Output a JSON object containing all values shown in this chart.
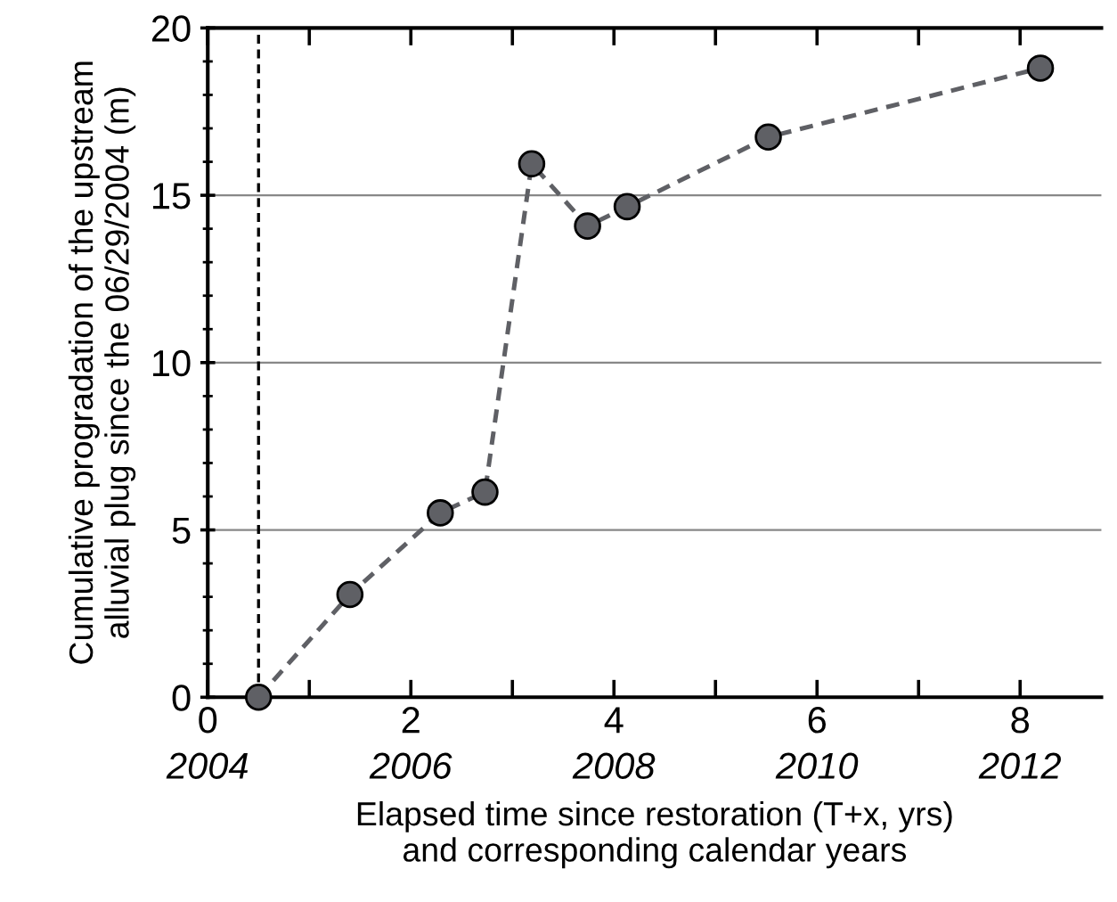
{
  "chart_data": {
    "type": "line",
    "xlabel": "Elapsed time since restoration (T+x, yrs)\nand corresponding calendar years",
    "ylabel": "Cumulative progradation of the upstream\nalluvial plug since the 06/29/2004 (m)",
    "x": [
      0.5,
      1.4,
      2.29,
      2.73,
      3.19,
      3.74,
      4.13,
      5.52,
      8.2
    ],
    "series": [
      {
        "color": "#5f6065",
        "values": [
          0.0,
          3.07,
          5.51,
          6.13,
          15.94,
          14.08,
          14.66,
          16.74,
          18.8
        ]
      }
    ],
    "marker": "circle",
    "line_style": "dashed",
    "xlim": [
      0,
      8.8
    ],
    "xticks": [
      0,
      {
        "value": 1,
        "label": null
      },
      2,
      {
        "value": 3,
        "label": null
      },
      4,
      {
        "value": 5,
        "label": null
      },
      6,
      {
        "value": 7,
        "label": null
      },
      8
    ],
    "x2lim": [
      2004,
      2012.8
    ],
    "x2ticks": [
      2004,
      2006,
      2008,
      2010,
      2012
    ],
    "ylim": [
      0,
      20
    ],
    "yticks": [
      0,
      5,
      10,
      15,
      20
    ],
    "grid": "y",
    "ref_lines": [
      {
        "axis": "x",
        "value": 0.5,
        "color": "#000000",
        "line_style": "dashed"
      }
    ]
  }
}
